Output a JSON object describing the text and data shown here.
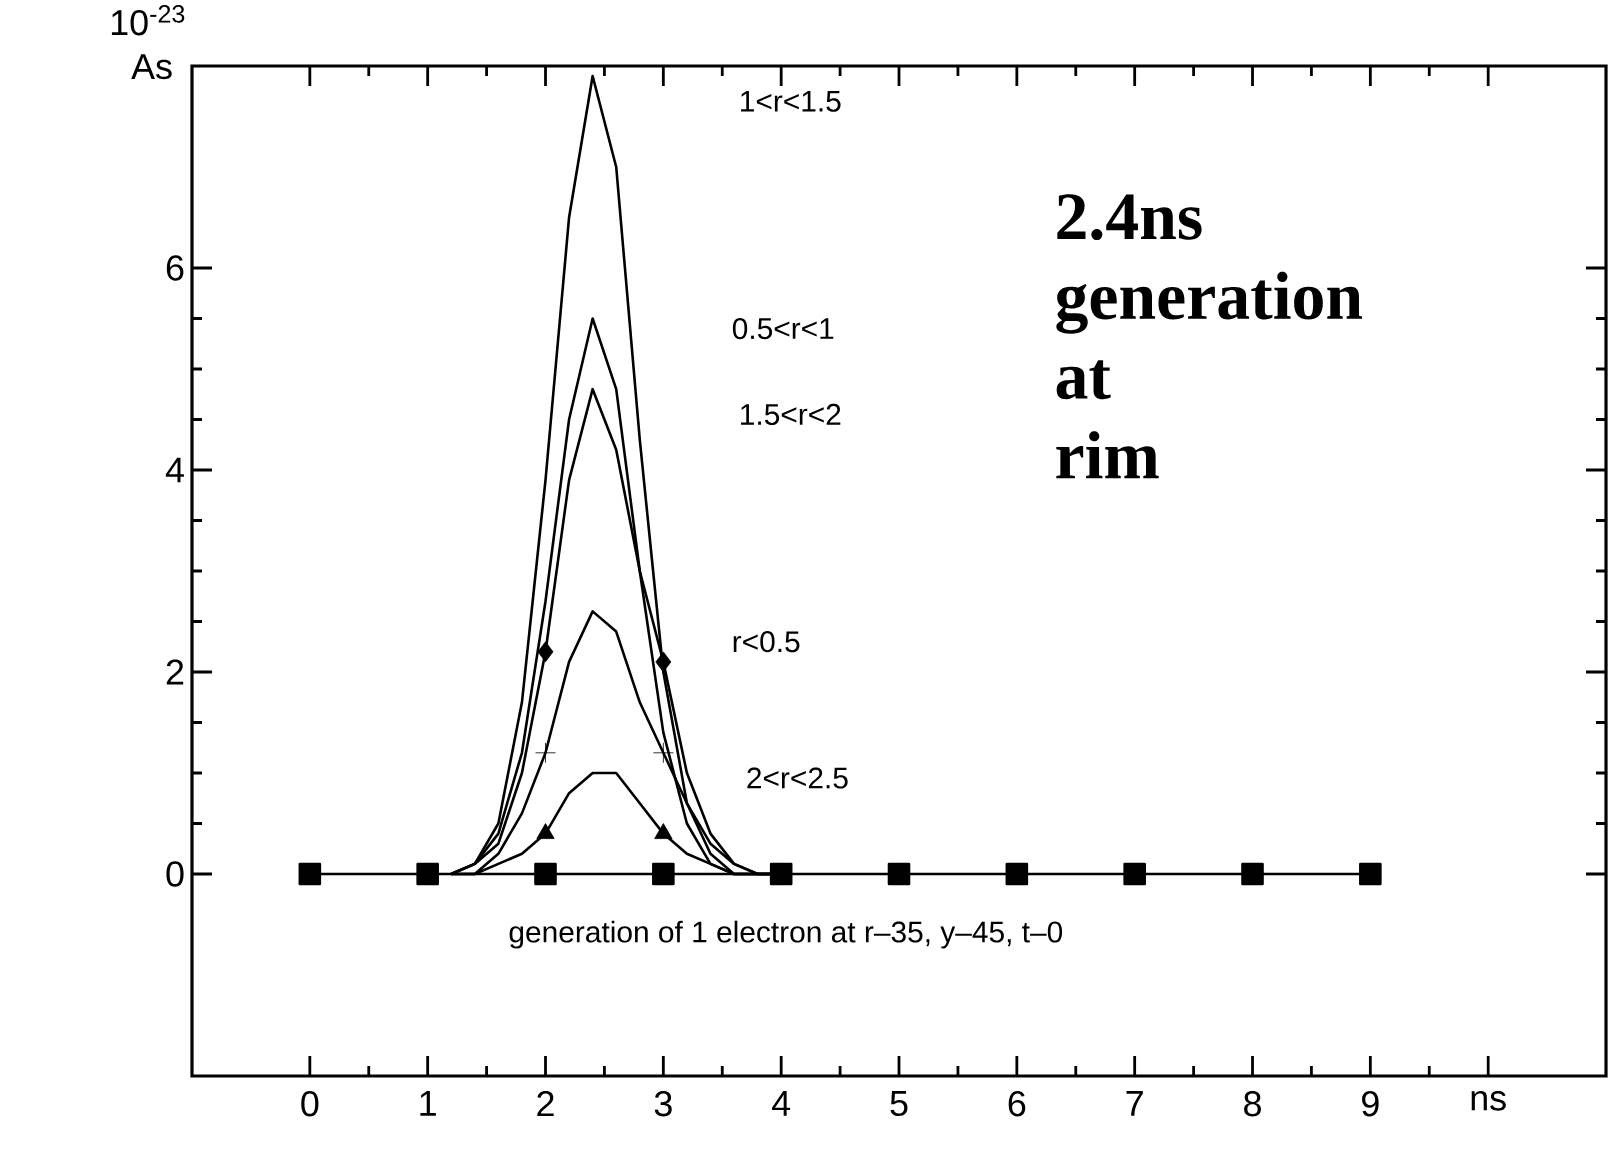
{
  "chart_data": {
    "type": "line",
    "ylabel": "10$^{-23}$ As",
    "xlim": [
      -1,
      11
    ],
    "ylim": [
      -2,
      8
    ],
    "xticks": [
      0,
      1,
      2,
      3,
      4,
      5,
      6,
      7,
      8,
      9,
      {
        "value": 10,
        "label": "ns"
      }
    ],
    "yticks": [
      0,
      2,
      4,
      6
    ],
    "series": [
      {
        "color": "#000000",
        "x": [
          1.2,
          1.4,
          1.6,
          1.8,
          2.0,
          2.2,
          2.4,
          2.6,
          2.8,
          3.0,
          3.2,
          3.4,
          3.6,
          3.8,
          4.0
        ],
        "values": [
          0,
          0.1,
          0.5,
          1.7,
          3.9,
          6.5,
          7.9,
          7.0,
          4.3,
          2.0,
          0.7,
          0.2,
          0,
          0,
          0
        ]
      },
      {
        "color": "#000000",
        "x": [
          1.2,
          1.4,
          1.6,
          1.8,
          2.0,
          2.2,
          2.4,
          2.6,
          2.8,
          3.0,
          3.2,
          3.4,
          3.6,
          3.8,
          4.0
        ],
        "values": [
          0,
          0.1,
          0.4,
          1.2,
          2.7,
          4.5,
          5.5,
          4.8,
          3.0,
          1.4,
          0.5,
          0.1,
          0,
          0,
          0
        ]
      },
      {
        "color": "#000000",
        "x": [
          1.2,
          1.4,
          1.6,
          1.8,
          2.0,
          2.2,
          2.4,
          2.6,
          2.8,
          3.0,
          3.2,
          3.4,
          3.6,
          3.8,
          4.0
        ],
        "values": [
          0,
          0.1,
          0.3,
          1.0,
          2.2,
          3.9,
          4.8,
          4.2,
          3.0,
          2.1,
          1.0,
          0.4,
          0.1,
          0,
          0
        ]
      },
      {
        "color": "#000000",
        "x": [
          1.2,
          1.4,
          1.6,
          1.8,
          2.0,
          2.2,
          2.4,
          2.6,
          2.8,
          3.0,
          3.2,
          3.4,
          3.6,
          3.8,
          4.0
        ],
        "values": [
          0,
          0,
          0.2,
          0.6,
          1.2,
          2.1,
          2.6,
          2.4,
          1.7,
          1.2,
          0.7,
          0.3,
          0.1,
          0,
          0
        ]
      },
      {
        "color": "#000000",
        "x": [
          1.2,
          1.4,
          1.6,
          1.8,
          2.0,
          2.2,
          2.4,
          2.6,
          2.8,
          3.0,
          3.2,
          3.4,
          3.6,
          3.8,
          4.0
        ],
        "values": [
          0,
          0,
          0.1,
          0.2,
          0.4,
          0.8,
          1.0,
          1.0,
          0.7,
          0.4,
          0.2,
          0.1,
          0,
          0,
          0
        ]
      },
      {
        "type": "scatter",
        "marker": "diamond",
        "color": "#000000",
        "x": [
          2,
          3
        ],
        "values": [
          2.2,
          2.1
        ]
      },
      {
        "type": "scatter",
        "marker": "cross",
        "color": "#000000",
        "x": [
          2,
          3
        ],
        "values": [
          1.2,
          1.2
        ]
      },
      {
        "type": "scatter",
        "marker": "triangle",
        "color": "#000000",
        "x": [
          2,
          3
        ],
        "values": [
          0.4,
          0.4
        ]
      },
      {
        "type": "line",
        "marker": "square",
        "color": "#000000",
        "x": [
          0,
          1,
          2,
          3,
          4,
          5,
          6,
          7,
          8,
          9
        ],
        "values": [
          0,
          0,
          0,
          0,
          0,
          0,
          0,
          0,
          0,
          0
        ]
      }
    ],
    "annotations": [
      "2.4ns generation at rim",
      "generation of 1 electron at r–35, y–45, t–0",
      "1<r<1.5",
      "0.5<r<1",
      "1.5<r<2",
      "r<0.5",
      "2<r<2.5"
    ]
  }
}
